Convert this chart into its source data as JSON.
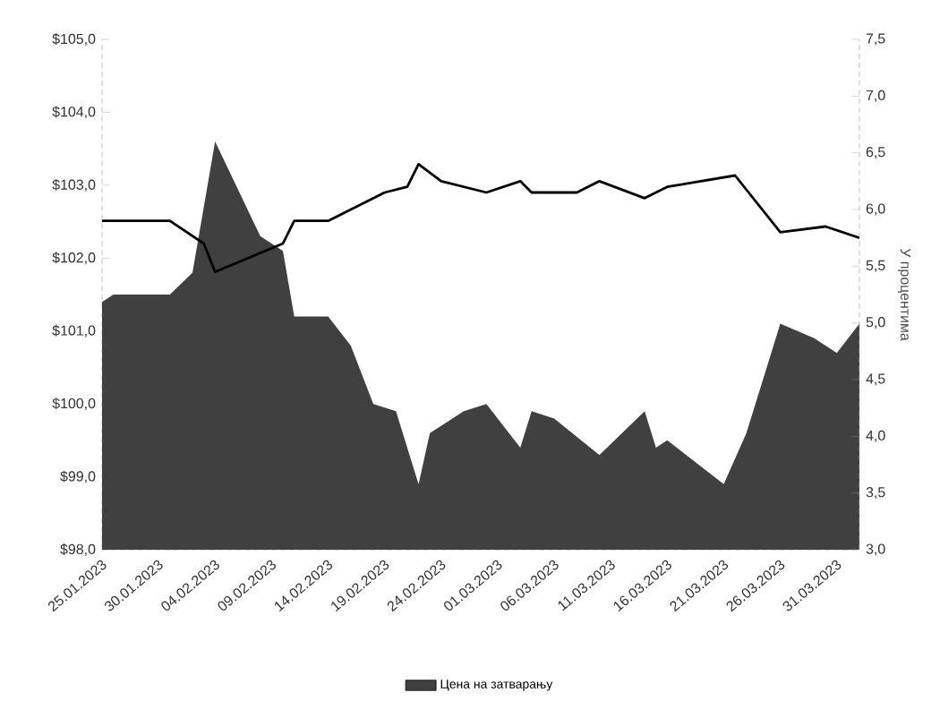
{
  "chart_data": {
    "type": "area",
    "y2label": "У процентима",
    "legend": "bottom",
    "xlim": [
      "2023-01-25",
      "2023-04-02"
    ],
    "xticks": [
      {
        "value": "2023-01-25",
        "label": "25.01.2023"
      },
      {
        "value": "2023-01-30",
        "label": "30.01.2023"
      },
      {
        "value": "2023-02-04",
        "label": "04.02.2023"
      },
      {
        "value": "2023-02-09",
        "label": "09.02.2023"
      },
      {
        "value": "2023-02-14",
        "label": "14.02.2023"
      },
      {
        "value": "2023-02-19",
        "label": "19.02.2023"
      },
      {
        "value": "2023-02-24",
        "label": "24.02.2023"
      },
      {
        "value": "2023-03-01",
        "label": "01.03.2023"
      },
      {
        "value": "2023-03-06",
        "label": "06.03.2023"
      },
      {
        "value": "2023-03-11",
        "label": "11.03.2023"
      },
      {
        "value": "2023-03-16",
        "label": "16.03.2023"
      },
      {
        "value": "2023-03-21",
        "label": "21.03.2023"
      },
      {
        "value": "2023-03-26",
        "label": "26.03.2023"
      },
      {
        "value": "2023-03-31",
        "label": "31.03.2023"
      }
    ],
    "ylim": [
      98,
      105
    ],
    "yticks": [
      {
        "value": 98,
        "label": "$98,0"
      },
      {
        "value": 99,
        "label": "$99,0"
      },
      {
        "value": 100,
        "label": "$100,0"
      },
      {
        "value": 101,
        "label": "$101,0"
      },
      {
        "value": 102,
        "label": "$102,0"
      },
      {
        "value": 103,
        "label": "$103,0"
      },
      {
        "value": 104,
        "label": "$104,0"
      },
      {
        "value": 105,
        "label": "$105,0"
      }
    ],
    "y2lim": [
      3,
      7.5
    ],
    "y2ticks": [
      {
        "value": 3,
        "label": "3,0"
      },
      {
        "value": 3.5,
        "label": "3,5"
      },
      {
        "value": 4,
        "label": "4,0"
      },
      {
        "value": 4.5,
        "label": "4,5"
      },
      {
        "value": 5,
        "label": "5,0"
      },
      {
        "value": 5.5,
        "label": "5,5"
      },
      {
        "value": 6,
        "label": "6,0"
      },
      {
        "value": 6.5,
        "label": "6,5"
      },
      {
        "value": 7,
        "label": "7,0"
      },
      {
        "value": 7.5,
        "label": "7,5"
      }
    ],
    "series": [
      {
        "name": "Цена на затварању",
        "color": "#404040",
        "x": [
          "2023-01-25",
          "2023-01-26",
          "2023-01-31",
          "2023-02-02",
          "2023-02-04",
          "2023-02-08",
          "2023-02-10",
          "2023-02-11",
          "2023-02-14",
          "2023-02-16",
          "2023-02-18",
          "2023-02-20",
          "2023-02-22",
          "2023-02-23",
          "2023-02-26",
          "2023-02-28",
          "2023-03-03",
          "2023-03-04",
          "2023-03-06",
          "2023-03-10",
          "2023-03-14",
          "2023-03-15",
          "2023-03-16",
          "2023-03-21",
          "2023-03-23",
          "2023-03-26",
          "2023-03-29",
          "2023-03-31",
          "2023-04-02"
        ],
        "values": [
          101.4,
          101.5,
          101.5,
          101.8,
          103.6,
          102.3,
          102.1,
          101.2,
          101.2,
          100.8,
          100.0,
          99.9,
          98.9,
          99.6,
          99.9,
          100.0,
          99.4,
          99.9,
          99.8,
          99.3,
          99.9,
          99.4,
          99.5,
          98.9,
          99.6,
          101.1,
          100.9,
          100.7,
          101.1
        ]
      },
      {
        "type": "line",
        "axis": "y2",
        "color": "#000000",
        "x": [
          "2023-01-25",
          "2023-01-31",
          "2023-02-03",
          "2023-02-04",
          "2023-02-10",
          "2023-02-11",
          "2023-02-14",
          "2023-02-19",
          "2023-02-21",
          "2023-02-22",
          "2023-02-24",
          "2023-02-28",
          "2023-03-03",
          "2023-03-04",
          "2023-03-08",
          "2023-03-10",
          "2023-03-14",
          "2023-03-16",
          "2023-03-22",
          "2023-03-26",
          "2023-03-30",
          "2023-04-02"
        ],
        "values": [
          5.9,
          5.9,
          5.7,
          5.45,
          5.7,
          5.9,
          5.9,
          6.15,
          6.2,
          6.4,
          6.25,
          6.15,
          6.25,
          6.15,
          6.15,
          6.25,
          6.1,
          6.2,
          6.3,
          5.8,
          5.85,
          5.75
        ]
      }
    ]
  }
}
